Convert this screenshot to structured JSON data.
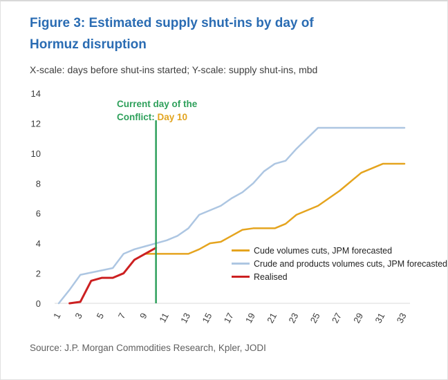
{
  "header": {
    "title_line1": "Figure 3: Estimated supply shut-ins by day of",
    "title_line2": "Hormuz disruption",
    "subtitle": "X-scale: days before shut-ins started; Y-scale: supply shut-ins, mbd"
  },
  "annotation": {
    "line1": "Current day of the",
    "line2_prefix": "Conflict: ",
    "line2_highlight": "Day 10",
    "text_color": "#2ea05b",
    "highlight_color": "#e2a41f"
  },
  "legend": {
    "items": [
      {
        "label": "Cude volumes cuts, JPM forecasted",
        "color": "#e5a41e"
      },
      {
        "label": "Crude and products volumes cuts, JPM forecasted",
        "color": "#adc6e2"
      },
      {
        "label": "Realised",
        "color": "#cc2021"
      }
    ]
  },
  "source": "Source: J.P. Morgan Commodities Research, Kpler, JODI",
  "chart_data": {
    "type": "line",
    "title": "Estimated supply shut-ins by day of Hormuz disruption",
    "xlabel": "days before shut-ins started",
    "ylabel": "supply shut-ins, mbd",
    "xlim": [
      1,
      33
    ],
    "ylim": [
      0,
      14
    ],
    "grid": false,
    "legend_position": "inside-bottom-right",
    "x_ticks": [
      1,
      3,
      5,
      7,
      9,
      11,
      13,
      15,
      17,
      19,
      21,
      23,
      25,
      27,
      29,
      31,
      33
    ],
    "y_ticks": [
      0,
      2,
      4,
      6,
      8,
      10,
      12,
      14
    ],
    "marker": {
      "x": 10,
      "y_top": 12.2,
      "color": "#2ea05b",
      "label": "Current day of the Conflict: Day 10"
    },
    "series": [
      {
        "name": "Crude and products volumes cuts, JPM forecasted",
        "color": "#adc6e2",
        "width": 2.5,
        "points": [
          [
            1,
            0
          ],
          [
            2,
            0.9
          ],
          [
            3,
            1.9
          ],
          [
            4,
            2.05
          ],
          [
            5,
            2.2
          ],
          [
            6,
            2.35
          ],
          [
            7,
            3.3
          ],
          [
            8,
            3.6
          ],
          [
            9,
            3.8
          ],
          [
            10,
            4.0
          ],
          [
            11,
            4.2
          ],
          [
            12,
            4.5
          ],
          [
            13,
            5.0
          ],
          [
            14,
            5.9
          ],
          [
            15,
            6.2
          ],
          [
            16,
            6.5
          ],
          [
            17,
            7.0
          ],
          [
            18,
            7.4
          ],
          [
            19,
            8.0
          ],
          [
            20,
            8.8
          ],
          [
            21,
            9.3
          ],
          [
            22,
            9.5
          ],
          [
            23,
            10.3
          ],
          [
            24,
            11.0
          ],
          [
            25,
            11.7
          ],
          [
            26,
            11.7
          ],
          [
            27,
            11.7
          ],
          [
            28,
            11.7
          ],
          [
            29,
            11.7
          ],
          [
            30,
            11.7
          ],
          [
            31,
            11.7
          ],
          [
            32,
            11.7
          ],
          [
            33,
            11.7
          ]
        ]
      },
      {
        "name": "Cude volumes cuts, JPM forecasted",
        "color": "#e5a41e",
        "width": 2.5,
        "points": [
          [
            9,
            3.3
          ],
          [
            10,
            3.3
          ],
          [
            11,
            3.3
          ],
          [
            12,
            3.3
          ],
          [
            13,
            3.3
          ],
          [
            14,
            3.6
          ],
          [
            15,
            4.0
          ],
          [
            16,
            4.1
          ],
          [
            17,
            4.5
          ],
          [
            18,
            4.9
          ],
          [
            19,
            5.0
          ],
          [
            20,
            5.0
          ],
          [
            21,
            5.0
          ],
          [
            22,
            5.3
          ],
          [
            23,
            5.9
          ],
          [
            24,
            6.2
          ],
          [
            25,
            6.5
          ],
          [
            26,
            7.0
          ],
          [
            27,
            7.5
          ],
          [
            28,
            8.1
          ],
          [
            29,
            8.7
          ],
          [
            30,
            9.0
          ],
          [
            31,
            9.3
          ],
          [
            32,
            9.3
          ],
          [
            33,
            9.3
          ]
        ]
      },
      {
        "name": "Realised",
        "color": "#cc2021",
        "width": 3,
        "points": [
          [
            2,
            0
          ],
          [
            3,
            0.1
          ],
          [
            4,
            1.5
          ],
          [
            5,
            1.7
          ],
          [
            6,
            1.7
          ],
          [
            7,
            2.0
          ],
          [
            8,
            2.9
          ],
          [
            9,
            3.3
          ],
          [
            10,
            3.7
          ]
        ]
      }
    ]
  }
}
